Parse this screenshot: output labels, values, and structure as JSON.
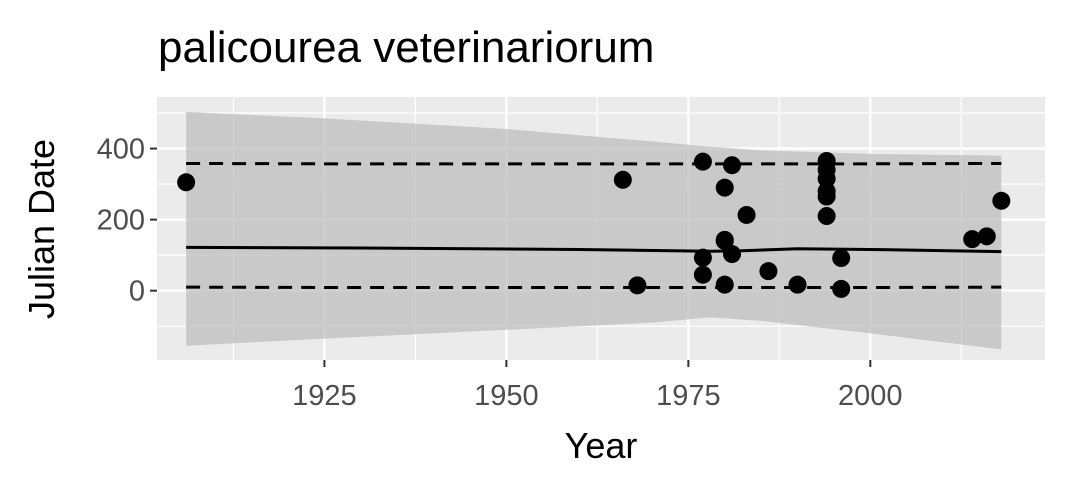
{
  "chart_data": {
    "type": "scatter",
    "title": "palicourea veterinariorum",
    "xlabel": "Year",
    "ylabel": "Julian Date",
    "xlim": [
      1902,
      2024
    ],
    "ylim": [
      -195,
      545
    ],
    "x_ticks": [
      1925,
      1950,
      1975,
      2000
    ],
    "x_tick_labels": [
      "1925",
      "1950",
      "1975",
      "2000"
    ],
    "y_ticks": [
      0,
      200,
      400
    ],
    "y_tick_labels": [
      "0",
      "200",
      "400"
    ],
    "grid": true,
    "colors": {
      "panel": "#ebebeb",
      "grid": "#ffffff",
      "ribbon": "#bdbdbd",
      "points": "#000000",
      "lines": "#000000"
    },
    "series": [
      {
        "type": "points",
        "x": [
          1906,
          1966,
          1968,
          1977,
          1977,
          1977,
          1980,
          1980,
          1980,
          1980,
          1981,
          1981,
          1983,
          1986,
          1990,
          1994,
          1994,
          1994,
          1994,
          1994,
          1994,
          1996,
          1996,
          2014,
          2016,
          2018
        ],
        "y": [
          305,
          312,
          15,
          363,
          93,
          45,
          290,
          143,
          140,
          17,
          353,
          103,
          213,
          55,
          17,
          365,
          340,
          315,
          280,
          210,
          265,
          92,
          5,
          145,
          153,
          253
        ]
      },
      {
        "type": "ribbon",
        "x": [
          1906,
          1925,
          1950,
          1970,
          1978,
          1985,
          2000,
          2018
        ],
        "lower": [
          -155,
          -135,
          -110,
          -90,
          -75,
          -85,
          -120,
          -165
        ],
        "upper": [
          503,
          485,
          455,
          420,
          405,
          395,
          385,
          380
        ]
      },
      {
        "type": "line",
        "style": "solid",
        "x": [
          1906,
          1930,
          1960,
          1978,
          1982,
          1990,
          2000,
          2018
        ],
        "y": [
          122,
          120,
          116,
          111,
          112,
          118,
          116,
          110
        ]
      },
      {
        "type": "line",
        "style": "dashed",
        "x": [
          1906,
          1925,
          1950,
          1975,
          2000,
          2018
        ],
        "y": [
          358,
          357,
          357,
          357,
          357,
          358
        ]
      },
      {
        "type": "line",
        "style": "dashed",
        "x": [
          1906,
          1925,
          1950,
          1975,
          2000,
          2018
        ],
        "y": [
          10,
          9,
          9,
          9,
          9,
          10
        ]
      }
    ]
  }
}
